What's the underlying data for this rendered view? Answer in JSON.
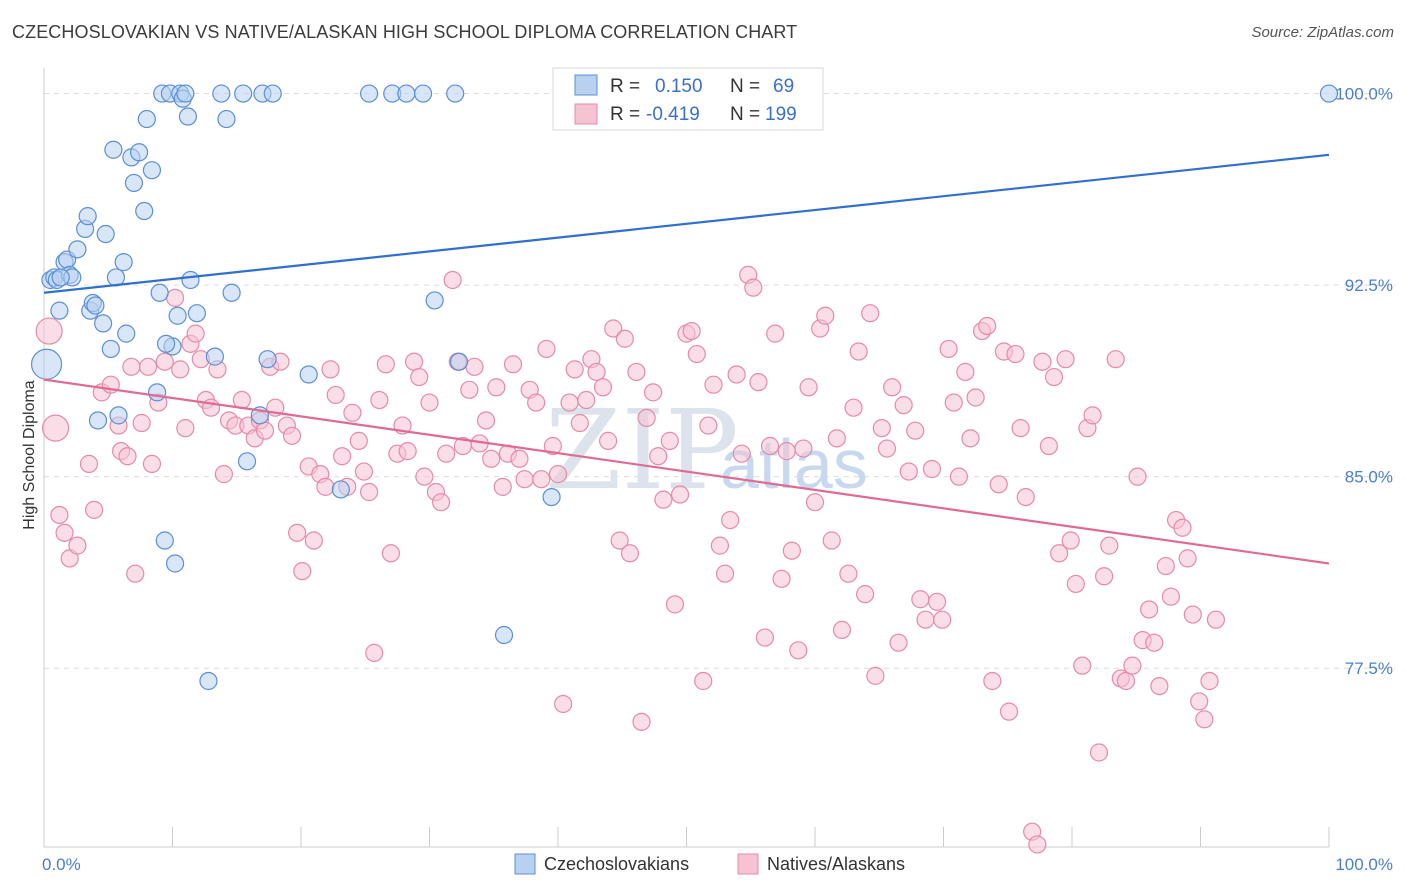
{
  "title": "CZECHOSLOVAKIAN VS NATIVE/ALASKAN HIGH SCHOOL DIPLOMA CORRELATION CHART",
  "source": "Source: ZipAtlas.com",
  "watermark": {
    "zip": "ZIP",
    "atlas": "atlas"
  },
  "colors": {
    "blue_fill": "#b8d1f0",
    "blue_stroke": "#5b8fd6",
    "blue_line": "#2f6fd0",
    "pink_fill": "#f6c3d3",
    "pink_stroke": "#e68aa8",
    "pink_line": "#e06a94",
    "tick_text": "#4a7fd0",
    "grid": "#dcdcdc"
  },
  "stats": {
    "blue": {
      "r_label": "R =",
      "r_value": "0.150",
      "n_label": "N =",
      "n_value": "69"
    },
    "pink": {
      "r_label": "R =",
      "r_value": "-0.419",
      "n_label": "N =",
      "n_value": "199"
    }
  },
  "chart_data": {
    "type": "scatter",
    "title": "CZECHOSLOVAKIAN VS NATIVE/ALASKAN HIGH SCHOOL DIPLOMA CORRELATION CHART",
    "xlabel": "",
    "ylabel": "High School Diploma",
    "xlim": [
      0,
      100
    ],
    "ylim": [
      70.5,
      101.0
    ],
    "x_tick_labels": [
      "0.0%",
      "100.0%"
    ],
    "y_ticks": [
      77.5,
      85.0,
      92.5,
      100.0
    ],
    "y_tick_labels": [
      "77.5%",
      "85.0%",
      "92.5%",
      "100.0%"
    ],
    "grid": true,
    "legend_position": "bottom-center",
    "series": [
      {
        "name": "Czechoslovakians",
        "color": "#5b8fd6",
        "trend": {
          "x": [
            0,
            100
          ],
          "y": [
            92.2,
            97.6
          ]
        },
        "points": [
          [
            0.5,
            92.7
          ],
          [
            0.8,
            92.8
          ],
          [
            1.0,
            92.7
          ],
          [
            1.2,
            91.5
          ],
          [
            1.6,
            93.4
          ],
          [
            1.8,
            93.5
          ],
          [
            2.0,
            92.9
          ],
          [
            2.2,
            92.8
          ],
          [
            2.6,
            93.9
          ],
          [
            3.2,
            94.7
          ],
          [
            3.4,
            95.2
          ],
          [
            3.6,
            91.5
          ],
          [
            3.8,
            91.8
          ],
          [
            4.0,
            91.7
          ],
          [
            4.2,
            87.2
          ],
          [
            4.6,
            91.0
          ],
          [
            4.8,
            94.5
          ],
          [
            5.2,
            90.0
          ],
          [
            5.4,
            97.8
          ],
          [
            5.6,
            92.8
          ],
          [
            5.8,
            87.4
          ],
          [
            6.2,
            93.4
          ],
          [
            6.4,
            90.6
          ],
          [
            6.8,
            97.5
          ],
          [
            7.0,
            96.5
          ],
          [
            7.4,
            97.7
          ],
          [
            7.8,
            95.4
          ],
          [
            8.0,
            99.0
          ],
          [
            8.4,
            97.0
          ],
          [
            8.8,
            88.3
          ],
          [
            9.0,
            92.2
          ],
          [
            9.2,
            100.0
          ],
          [
            9.4,
            82.5
          ],
          [
            9.8,
            100.0
          ],
          [
            10.0,
            90.1
          ],
          [
            10.2,
            81.6
          ],
          [
            10.4,
            91.3
          ],
          [
            10.6,
            100.0
          ],
          [
            10.8,
            99.8
          ],
          [
            11.0,
            100.0
          ],
          [
            11.2,
            99.1
          ],
          [
            11.4,
            92.7
          ],
          [
            11.9,
            91.4
          ],
          [
            12.8,
            77.0
          ],
          [
            13.3,
            89.7
          ],
          [
            13.8,
            100.0
          ],
          [
            14.2,
            99.0
          ],
          [
            14.6,
            92.2
          ],
          [
            15.5,
            100.0
          ],
          [
            15.8,
            85.6
          ],
          [
            16.8,
            87.4
          ],
          [
            17.0,
            100.0
          ],
          [
            17.4,
            89.6
          ],
          [
            17.8,
            100.0
          ],
          [
            20.6,
            89.0
          ],
          [
            23.1,
            84.5
          ],
          [
            25.3,
            100.0
          ],
          [
            27.1,
            100.0
          ],
          [
            28.2,
            100.0
          ],
          [
            29.5,
            100.0
          ],
          [
            30.4,
            91.9
          ],
          [
            32.0,
            100.0
          ],
          [
            32.3,
            89.5
          ],
          [
            35.8,
            78.8
          ],
          [
            39.5,
            84.2
          ],
          [
            100.0,
            100.0
          ],
          [
            0.2,
            89.4
          ],
          [
            1.3,
            92.8
          ],
          [
            9.5,
            90.2
          ]
        ]
      },
      {
        "name": "Natives/Alaskans",
        "color": "#e68aa8",
        "trend": {
          "x": [
            0,
            100
          ],
          "y": [
            88.8,
            81.6
          ]
        },
        "points": [
          [
            0.4,
            90.7
          ],
          [
            0.9,
            86.9
          ],
          [
            1.2,
            83.5
          ],
          [
            1.6,
            82.8
          ],
          [
            2.0,
            81.8
          ],
          [
            2.6,
            82.3
          ],
          [
            3.5,
            85.5
          ],
          [
            3.9,
            83.7
          ],
          [
            4.5,
            88.3
          ],
          [
            5.2,
            88.6
          ],
          [
            5.8,
            87.0
          ],
          [
            6.0,
            86.0
          ],
          [
            6.5,
            85.8
          ],
          [
            6.8,
            89.3
          ],
          [
            7.1,
            81.2
          ],
          [
            7.6,
            87.1
          ],
          [
            8.1,
            89.3
          ],
          [
            8.4,
            85.5
          ],
          [
            8.9,
            87.9
          ],
          [
            9.4,
            89.5
          ],
          [
            10.2,
            92.0
          ],
          [
            10.6,
            89.2
          ],
          [
            11.0,
            86.9
          ],
          [
            11.4,
            90.2
          ],
          [
            11.8,
            90.6
          ],
          [
            12.2,
            89.6
          ],
          [
            12.6,
            88.0
          ],
          [
            13.0,
            87.7
          ],
          [
            13.5,
            89.2
          ],
          [
            14.0,
            85.1
          ],
          [
            14.4,
            87.2
          ],
          [
            14.9,
            87.0
          ],
          [
            15.4,
            88.0
          ],
          [
            15.9,
            87.0
          ],
          [
            16.4,
            86.5
          ],
          [
            16.8,
            87.2
          ],
          [
            17.2,
            86.8
          ],
          [
            17.6,
            89.3
          ],
          [
            18.0,
            87.7
          ],
          [
            18.4,
            89.5
          ],
          [
            18.9,
            87.0
          ],
          [
            19.3,
            86.6
          ],
          [
            19.7,
            82.8
          ],
          [
            20.1,
            81.3
          ],
          [
            20.6,
            85.4
          ],
          [
            21.0,
            82.5
          ],
          [
            21.5,
            85.1
          ],
          [
            21.9,
            84.6
          ],
          [
            22.3,
            89.2
          ],
          [
            22.7,
            88.2
          ],
          [
            23.2,
            85.8
          ],
          [
            23.6,
            84.6
          ],
          [
            24.0,
            87.5
          ],
          [
            24.5,
            86.4
          ],
          [
            24.9,
            85.2
          ],
          [
            25.3,
            84.4
          ],
          [
            25.7,
            78.1
          ],
          [
            26.1,
            88.0
          ],
          [
            26.6,
            89.4
          ],
          [
            27.0,
            82.0
          ],
          [
            27.5,
            85.9
          ],
          [
            27.9,
            87.0
          ],
          [
            28.3,
            86.0
          ],
          [
            28.8,
            89.5
          ],
          [
            29.2,
            88.9
          ],
          [
            29.6,
            85.0
          ],
          [
            30.0,
            87.9
          ],
          [
            30.5,
            84.4
          ],
          [
            30.9,
            84.0
          ],
          [
            31.3,
            85.9
          ],
          [
            31.8,
            92.7
          ],
          [
            32.2,
            89.5
          ],
          [
            32.6,
            86.2
          ],
          [
            33.1,
            88.4
          ],
          [
            33.5,
            89.3
          ],
          [
            33.9,
            86.3
          ],
          [
            34.4,
            87.2
          ],
          [
            34.8,
            85.7
          ],
          [
            35.2,
            88.5
          ],
          [
            35.7,
            84.6
          ],
          [
            36.1,
            85.9
          ],
          [
            36.5,
            89.4
          ],
          [
            37.0,
            85.7
          ],
          [
            37.4,
            84.9
          ],
          [
            37.8,
            88.4
          ],
          [
            38.3,
            87.9
          ],
          [
            38.7,
            84.9
          ],
          [
            39.1,
            90.0
          ],
          [
            39.6,
            86.2
          ],
          [
            40.0,
            85.1
          ],
          [
            40.4,
            76.1
          ],
          [
            40.9,
            87.9
          ],
          [
            41.3,
            89.2
          ],
          [
            41.7,
            87.1
          ],
          [
            42.2,
            88.0
          ],
          [
            42.6,
            89.6
          ],
          [
            43.0,
            89.1
          ],
          [
            43.5,
            88.5
          ],
          [
            43.9,
            86.4
          ],
          [
            44.3,
            90.8
          ],
          [
            44.8,
            82.5
          ],
          [
            45.2,
            90.4
          ],
          [
            45.6,
            82.0
          ],
          [
            46.1,
            89.1
          ],
          [
            46.5,
            75.4
          ],
          [
            46.9,
            87.3
          ],
          [
            47.4,
            88.3
          ],
          [
            47.8,
            85.8
          ],
          [
            48.2,
            84.1
          ],
          [
            48.7,
            86.4
          ],
          [
            49.1,
            80.0
          ],
          [
            49.5,
            84.3
          ],
          [
            50.0,
            90.6
          ],
          [
            50.4,
            90.7
          ],
          [
            50.8,
            89.8
          ],
          [
            51.3,
            77.0
          ],
          [
            51.7,
            87.0
          ],
          [
            52.1,
            88.6
          ],
          [
            52.6,
            82.3
          ],
          [
            53.0,
            81.2
          ],
          [
            53.4,
            83.3
          ],
          [
            53.9,
            89.0
          ],
          [
            54.3,
            85.9
          ],
          [
            54.8,
            92.9
          ],
          [
            55.2,
            92.4
          ],
          [
            55.6,
            88.7
          ],
          [
            56.1,
            78.7
          ],
          [
            56.5,
            86.2
          ],
          [
            56.9,
            90.6
          ],
          [
            57.4,
            81.0
          ],
          [
            57.8,
            86.0
          ],
          [
            58.2,
            82.1
          ],
          [
            58.7,
            78.2
          ],
          [
            59.1,
            86.1
          ],
          [
            59.5,
            88.5
          ],
          [
            60.0,
            84.0
          ],
          [
            60.4,
            90.8
          ],
          [
            60.8,
            91.3
          ],
          [
            61.3,
            82.5
          ],
          [
            61.7,
            86.5
          ],
          [
            62.1,
            79.0
          ],
          [
            62.6,
            81.2
          ],
          [
            63.0,
            87.7
          ],
          [
            63.4,
            89.9
          ],
          [
            63.9,
            80.4
          ],
          [
            64.3,
            91.4
          ],
          [
            64.7,
            77.2
          ],
          [
            65.2,
            86.9
          ],
          [
            65.6,
            86.1
          ],
          [
            66.0,
            88.5
          ],
          [
            66.5,
            78.5
          ],
          [
            66.9,
            87.8
          ],
          [
            67.3,
            85.2
          ],
          [
            67.8,
            86.8
          ],
          [
            68.2,
            80.2
          ],
          [
            68.6,
            79.4
          ],
          [
            69.1,
            85.3
          ],
          [
            69.5,
            80.1
          ],
          [
            69.9,
            79.4
          ],
          [
            70.4,
            90.0
          ],
          [
            70.8,
            87.9
          ],
          [
            71.2,
            85.0
          ],
          [
            71.7,
            89.1
          ],
          [
            72.1,
            86.5
          ],
          [
            72.5,
            88.1
          ],
          [
            73.0,
            90.7
          ],
          [
            73.4,
            90.9
          ],
          [
            73.8,
            77.0
          ],
          [
            74.3,
            84.7
          ],
          [
            74.7,
            89.9
          ],
          [
            75.1,
            75.8
          ],
          [
            75.6,
            89.8
          ],
          [
            76.0,
            86.9
          ],
          [
            76.4,
            84.2
          ],
          [
            76.9,
            71.1
          ],
          [
            77.3,
            70.6
          ],
          [
            77.7,
            89.5
          ],
          [
            78.2,
            86.2
          ],
          [
            78.6,
            88.9
          ],
          [
            79.0,
            82.0
          ],
          [
            79.5,
            89.6
          ],
          [
            79.9,
            82.5
          ],
          [
            80.3,
            80.8
          ],
          [
            80.8,
            77.6
          ],
          [
            81.2,
            86.9
          ],
          [
            81.6,
            87.4
          ],
          [
            82.1,
            74.2
          ],
          [
            82.5,
            81.1
          ],
          [
            82.9,
            82.3
          ],
          [
            83.4,
            89.6
          ],
          [
            83.8,
            77.1
          ],
          [
            84.2,
            77.0
          ],
          [
            84.7,
            77.6
          ],
          [
            85.1,
            85.0
          ],
          [
            85.5,
            78.6
          ],
          [
            86.0,
            79.8
          ],
          [
            86.4,
            78.5
          ],
          [
            86.8,
            76.8
          ],
          [
            87.3,
            81.5
          ],
          [
            87.7,
            80.3
          ],
          [
            88.1,
            83.3
          ],
          [
            88.6,
            83.0
          ],
          [
            89.0,
            81.8
          ],
          [
            89.4,
            79.6
          ],
          [
            89.9,
            76.2
          ],
          [
            90.3,
            75.5
          ],
          [
            90.7,
            77.0
          ],
          [
            91.2,
            79.4
          ]
        ]
      }
    ]
  },
  "legend": {
    "items": [
      {
        "label": "Czechoslovakians"
      },
      {
        "label": "Natives/Alaskans"
      }
    ]
  }
}
